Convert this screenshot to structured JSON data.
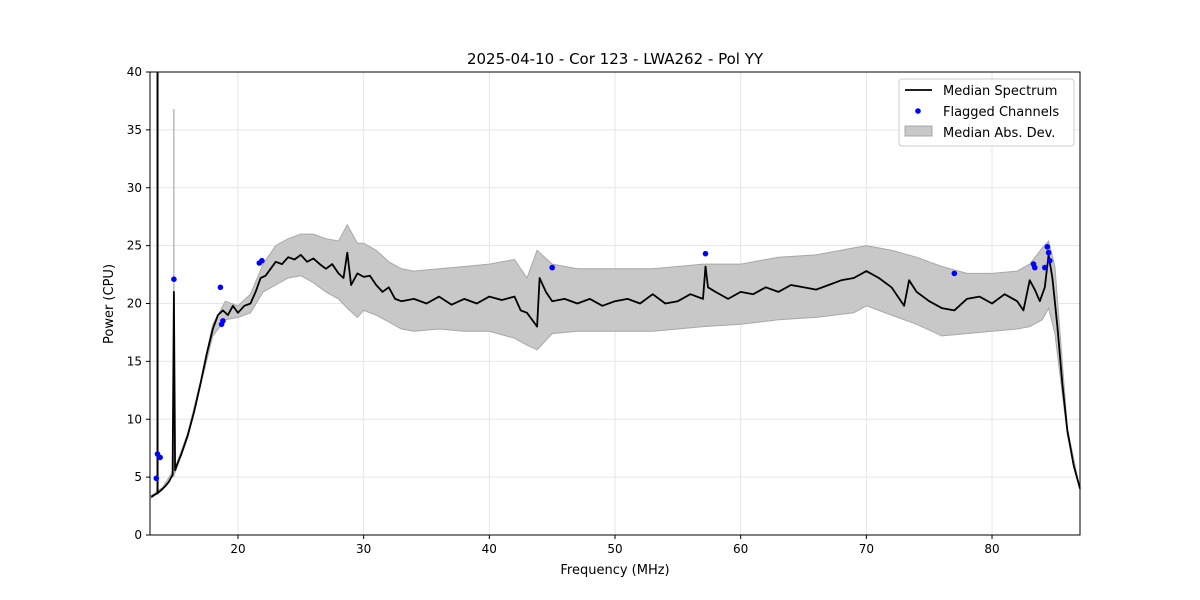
{
  "chart_data": {
    "type": "line",
    "title": "2025-04-10 - Cor 123 - LWA262 - Pol YY",
    "xlabel": "Frequency (MHz)",
    "ylabel": "Power (CPU)",
    "xlim": [
      13.0,
      87.0
    ],
    "ylim": [
      0,
      40
    ],
    "xticks": [
      20,
      30,
      40,
      50,
      60,
      70,
      80
    ],
    "yticks": [
      0,
      5,
      10,
      15,
      20,
      25,
      30,
      35,
      40
    ],
    "grid": true,
    "legend_position": "top-right",
    "colors": {
      "median": "#000000",
      "flagged": "#0000ff",
      "mad_fill": "#c8c8c8",
      "mad_edge": "#a8a8a8",
      "grid": "#e6e6e6"
    },
    "legend": [
      {
        "label": "Median Spectrum",
        "kind": "line"
      },
      {
        "label": "Flagged Channels",
        "kind": "marker"
      },
      {
        "label": "Median Abs. Dev.",
        "kind": "patch"
      }
    ],
    "series": [
      {
        "name": "Median Spectrum",
        "kind": "line",
        "x": [
          13.1,
          13.4,
          13.6,
          13.8,
          14.0,
          14.2,
          14.5,
          14.8,
          14.9,
          15.0,
          15.2,
          15.5,
          16.0,
          16.5,
          17.0,
          17.5,
          18.0,
          18.4,
          18.8,
          19.2,
          19.6,
          20.0,
          20.5,
          21.0,
          21.4,
          21.8,
          22.2,
          22.6,
          23.0,
          23.5,
          24.0,
          24.5,
          25.0,
          25.5,
          26.0,
          26.5,
          27.0,
          27.5,
          28.0,
          28.4,
          28.7,
          29.0,
          29.5,
          30.0,
          30.5,
          31.0,
          31.5,
          32.0,
          32.5,
          33.0,
          34.0,
          35.0,
          36.0,
          37.0,
          38.0,
          39.0,
          40.0,
          41.0,
          42.0,
          42.5,
          43.0,
          43.8,
          44.0,
          44.5,
          45.0,
          46.0,
          47.0,
          48.0,
          49.0,
          50.0,
          51.0,
          52.0,
          53.0,
          54.0,
          55.0,
          56.0,
          57.0,
          57.2,
          57.4,
          58.0,
          59.0,
          60.0,
          61.0,
          62.0,
          63.0,
          64.0,
          65.0,
          66.0,
          67.0,
          68.0,
          69.0,
          70.0,
          71.0,
          72.0,
          73.0,
          73.4,
          74.0,
          75.0,
          76.0,
          77.0,
          78.0,
          79.0,
          80.0,
          81.0,
          82.0,
          82.5,
          83.0,
          83.4,
          83.8,
          84.2,
          84.5,
          84.8,
          85.2,
          85.6,
          86.0,
          86.5,
          87.0
        ],
        "y": [
          3.3,
          3.5,
          3.6,
          3.8,
          4.0,
          4.2,
          4.6,
          5.2,
          21.0,
          5.6,
          6.2,
          7.0,
          8.6,
          10.6,
          13.0,
          15.6,
          17.8,
          19.0,
          19.4,
          19.0,
          19.8,
          19.2,
          19.8,
          20.0,
          21.0,
          22.2,
          22.4,
          23.0,
          23.6,
          23.4,
          24.0,
          23.8,
          24.2,
          23.6,
          23.9,
          23.4,
          23.0,
          23.4,
          22.6,
          22.2,
          24.4,
          21.6,
          22.6,
          22.3,
          22.4,
          21.6,
          21.0,
          21.4,
          20.4,
          20.2,
          20.4,
          20.0,
          20.6,
          19.9,
          20.4,
          20.0,
          20.6,
          20.3,
          20.6,
          19.4,
          19.2,
          18.0,
          22.2,
          21.0,
          20.2,
          20.4,
          20.0,
          20.4,
          19.8,
          20.2,
          20.4,
          20.0,
          20.8,
          20.0,
          20.2,
          20.8,
          20.4,
          23.2,
          21.4,
          21.0,
          20.4,
          21.0,
          20.8,
          21.4,
          21.0,
          21.6,
          21.4,
          21.2,
          21.6,
          22.0,
          22.2,
          22.8,
          22.2,
          21.4,
          19.8,
          22.0,
          21.0,
          20.2,
          19.6,
          19.4,
          20.4,
          20.6,
          20.0,
          20.8,
          20.2,
          19.4,
          22.0,
          21.2,
          20.2,
          21.4,
          24.2,
          22.2,
          18.0,
          13.0,
          9.0,
          6.0,
          4.0
        ]
      },
      {
        "name": "Median Abs. Dev.",
        "kind": "band",
        "x": [
          13.1,
          14.0,
          15.0,
          16.0,
          17.0,
          18.0,
          19.0,
          20.0,
          21.0,
          22.0,
          23.0,
          24.0,
          25.0,
          26.0,
          27.0,
          28.0,
          28.7,
          29.5,
          30.0,
          31.0,
          32.0,
          33.0,
          34.0,
          36.0,
          38.0,
          40.0,
          42.0,
          43.0,
          43.8,
          45.0,
          47.0,
          50.0,
          53.0,
          55.0,
          57.0,
          60.0,
          63.0,
          66.0,
          69.0,
          70.0,
          72.0,
          74.0,
          76.0,
          78.0,
          80.0,
          82.0,
          83.0,
          84.0,
          84.5,
          85.0,
          86.0,
          87.0
        ],
        "low": [
          3.2,
          3.9,
          5.4,
          8.4,
          12.8,
          17.2,
          18.6,
          18.8,
          19.2,
          21.0,
          21.6,
          22.2,
          22.4,
          21.8,
          21.0,
          20.4,
          19.6,
          18.8,
          19.4,
          19.0,
          18.4,
          17.8,
          17.6,
          17.8,
          17.6,
          17.6,
          17.0,
          16.4,
          16.0,
          17.4,
          17.6,
          17.6,
          17.6,
          17.8,
          18.0,
          18.2,
          18.6,
          18.8,
          19.2,
          19.8,
          19.0,
          18.2,
          17.2,
          17.4,
          17.6,
          17.8,
          18.0,
          18.6,
          19.6,
          17.4,
          8.6,
          4.0
        ],
        "high": [
          3.4,
          4.1,
          5.8,
          8.8,
          13.2,
          18.2,
          20.2,
          19.8,
          20.8,
          23.4,
          25.0,
          25.6,
          26.0,
          26.0,
          25.6,
          25.4,
          26.8,
          25.2,
          25.2,
          24.6,
          23.6,
          23.0,
          22.8,
          23.0,
          23.2,
          23.4,
          23.8,
          22.2,
          24.6,
          23.4,
          23.0,
          23.0,
          23.0,
          23.2,
          23.4,
          23.4,
          24.0,
          24.2,
          24.8,
          25.0,
          24.6,
          24.0,
          23.2,
          22.6,
          22.6,
          22.8,
          23.4,
          24.8,
          25.4,
          23.2,
          9.2,
          4.0
        ]
      },
      {
        "name": "Flagged Channels",
        "kind": "scatter",
        "x": [
          13.5,
          13.6,
          13.8,
          14.9,
          18.6,
          18.7,
          18.8,
          21.7,
          21.9,
          45.0,
          57.2,
          77.0,
          83.3,
          83.4,
          84.2,
          84.4,
          84.5,
          84.6
        ],
        "y": [
          4.9,
          7.0,
          6.7,
          22.1,
          21.4,
          18.2,
          18.5,
          23.5,
          23.7,
          23.1,
          24.3,
          22.6,
          23.4,
          23.1,
          23.1,
          24.9,
          24.4,
          23.7
        ]
      }
    ]
  }
}
